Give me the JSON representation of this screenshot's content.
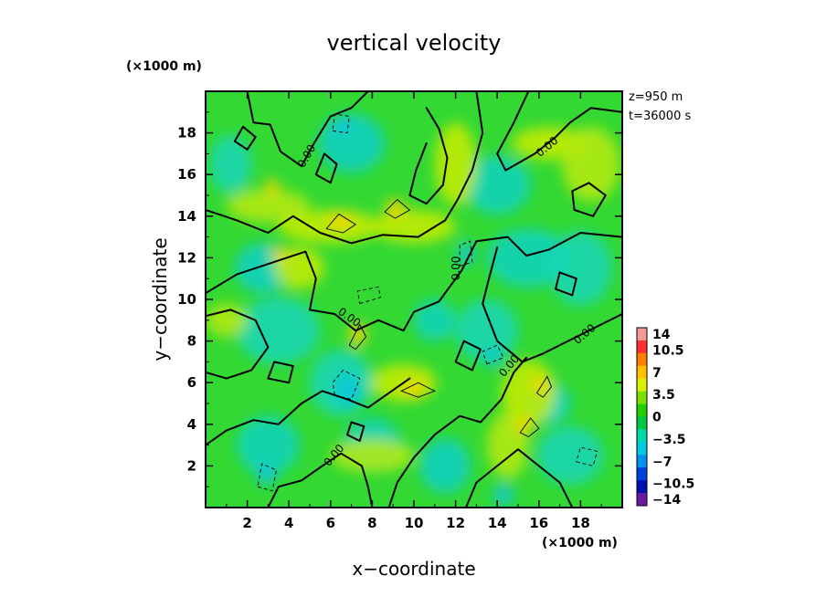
{
  "chart_data": {
    "type": "heatmap",
    "title": "vertical velocity",
    "xlabel": "x−coordinate",
    "ylabel": "y−coordinate",
    "x_unit": "(×1000 m)",
    "y_unit": "(×1000 m)",
    "info": [
      "z=950  m",
      "t=36000  s"
    ],
    "xlim": [
      0,
      20
    ],
    "ylim": [
      0,
      20
    ],
    "x_ticks": [
      2,
      4,
      6,
      8,
      10,
      12,
      14,
      16,
      18
    ],
    "y_ticks": [
      2,
      4,
      6,
      8,
      10,
      12,
      14,
      16,
      18
    ],
    "x_tick_labels": [
      "2",
      "4",
      "6",
      "8",
      "10",
      "12",
      "14",
      "16",
      "18"
    ],
    "y_tick_labels": [
      "2",
      "4",
      "6",
      "8",
      "10",
      "12",
      "14",
      "16",
      "18"
    ],
    "colorbar": {
      "min": -14,
      "max": 14,
      "labels": [
        "14",
        "10.5",
        "7",
        "3.5",
        "0",
        "−3.5",
        "−7",
        "−10.5",
        "−14"
      ],
      "label_values": [
        14,
        10.5,
        7,
        3.5,
        0,
        -3.5,
        -7,
        -10.5,
        -14
      ],
      "colors": [
        "#f29a9a",
        "#ff3030",
        "#ff7f00",
        "#ffc000",
        "#d9f000",
        "#7be000",
        "#22d000",
        "#00c840",
        "#00d8a8",
        "#00c8e0",
        "#0090f0",
        "#0040e0",
        "#0010b0",
        "#6a1aa0"
      ]
    },
    "contour_labels": [
      {
        "text": "0.00",
        "x": 5.0,
        "y": 16.8,
        "angle": -60
      },
      {
        "text": "0.00",
        "x": 16.5,
        "y": 17.2,
        "angle": -40
      },
      {
        "text": "0.00",
        "x": 12.2,
        "y": 11.5,
        "angle": -90
      },
      {
        "text": "0.00",
        "x": 6.8,
        "y": 9.0,
        "angle": 35
      },
      {
        "text": "0.00",
        "x": 18.3,
        "y": 8.2,
        "angle": -40
      },
      {
        "text": "0.00",
        "x": 14.7,
        "y": 6.7,
        "angle": -50
      },
      {
        "text": "0.00",
        "x": 6.3,
        "y": 2.4,
        "angle": -50
      }
    ],
    "grid": false,
    "legend": "colorbar-right"
  }
}
